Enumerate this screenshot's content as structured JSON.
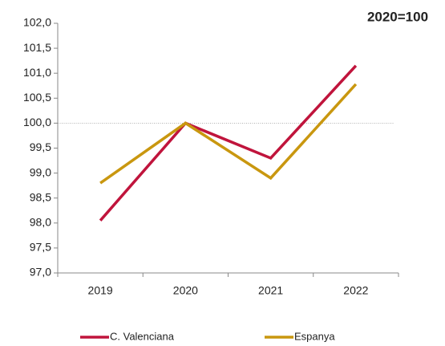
{
  "chart_data": {
    "type": "line",
    "annotation": "2020=100",
    "categories": [
      "2019",
      "2020",
      "2021",
      "2022"
    ],
    "series": [
      {
        "name": "C. Valenciana",
        "color": "#c0143c",
        "values": [
          98.05,
          100.0,
          99.3,
          101.15
        ]
      },
      {
        "name": "Espanya",
        "color": "#c9970f",
        "values": [
          98.8,
          100.0,
          98.9,
          100.78
        ]
      }
    ],
    "ylim": [
      97,
      102
    ],
    "yticks": [
      {
        "value": 97,
        "label": "97,0"
      },
      {
        "value": 97.5,
        "label": "97,5"
      },
      {
        "value": 98,
        "label": "98,0"
      },
      {
        "value": 98.5,
        "label": "98,5"
      },
      {
        "value": 99,
        "label": "99,0"
      },
      {
        "value": 99.5,
        "label": "99,5"
      },
      {
        "value": 100,
        "label": "100,0"
      },
      {
        "value": 100.5,
        "label": "100,5"
      },
      {
        "value": 101,
        "label": "101,0"
      },
      {
        "value": 101.5,
        "label": "101,5"
      },
      {
        "value": 102,
        "label": "102,0"
      }
    ],
    "hline": 100,
    "legend": "bottom"
  }
}
